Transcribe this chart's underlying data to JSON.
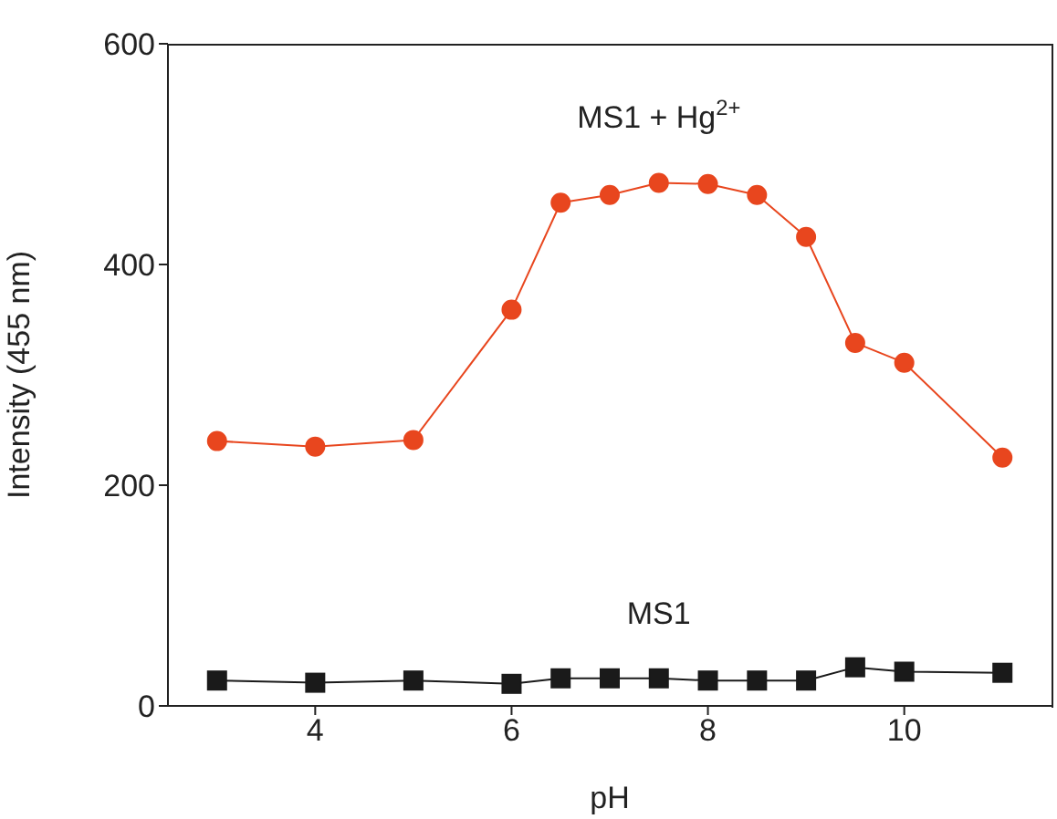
{
  "chart_data": {
    "type": "line",
    "xlabel": "pH",
    "ylabel": "Intensity (455 nm)",
    "x": [
      3,
      4,
      5,
      6,
      6.5,
      7,
      7.5,
      8,
      8.5,
      9,
      9.5,
      10,
      11
    ],
    "series": [
      {
        "name": "MS1 + Hg$^{2+}$",
        "color": "#e8461e",
        "marker": "circle",
        "values": [
          240,
          235,
          241,
          359,
          456,
          463,
          474,
          473,
          463,
          425,
          329,
          311,
          225
        ]
      },
      {
        "name": "MS1",
        "color": "#1a1a1a",
        "marker": "square",
        "values": [
          23,
          21,
          23,
          20,
          25,
          25,
          25,
          23,
          23,
          23,
          35,
          31,
          30
        ]
      }
    ],
    "xlim": [
      2.5,
      11.5
    ],
    "ylim": [
      0,
      600
    ],
    "xticks": [
      4,
      6,
      8,
      10
    ],
    "yticks": [
      0,
      200,
      400,
      600
    ],
    "grid": false
  }
}
